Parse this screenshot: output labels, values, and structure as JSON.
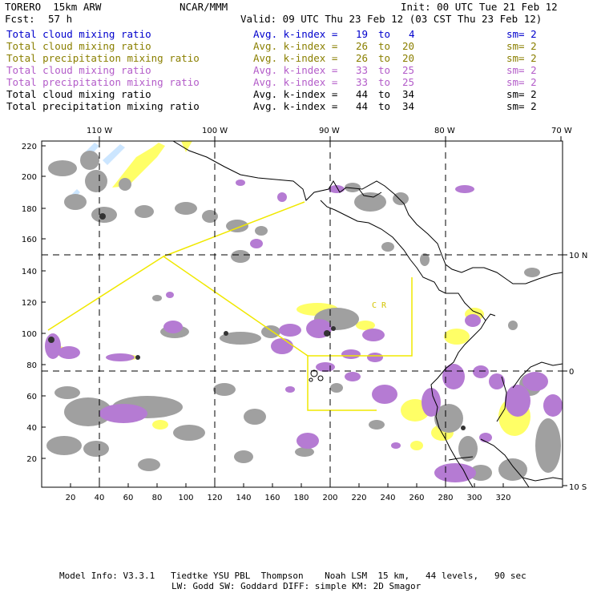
{
  "header": {
    "model": "TORERO  15km ARW",
    "center": "NCAR/MMM",
    "init": "Init: 00 UTC Tue 21 Feb 12",
    "fcst_label": "Fcst:",
    "fcst_value": "57 h",
    "valid": "Valid: 09 UTC Thu 23 Feb 12 (03 CST Thu 23 Feb 12)"
  },
  "legend": [
    {
      "field": "Total cloud mixing ratio",
      "avg": "Avg. k-index =",
      "from": "19",
      "to_word": "to",
      "to": "4",
      "sm": "sm= 2",
      "color": "#0000cc"
    },
    {
      "field": "Total cloud mixing ratio",
      "avg": "Avg. k-index =",
      "from": "26",
      "to_word": "to",
      "to": "20",
      "sm": "sm= 2",
      "color": "#8a7f00"
    },
    {
      "field": "Total precipitation mixing ratio",
      "avg": "Avg. k-index =",
      "from": "26",
      "to_word": "to",
      "to": "20",
      "sm": "sm= 2",
      "color": "#8a7f00"
    },
    {
      "field": "Total cloud mixing ratio",
      "avg": "Avg. k-index =",
      "from": "33",
      "to_word": "to",
      "to": "25",
      "sm": "sm= 2",
      "color": "#b35cc9"
    },
    {
      "field": "Total precipitation mixing ratio",
      "avg": "Avg. k-index =",
      "from": "33",
      "to_word": "to",
      "to": "25",
      "sm": "sm= 2",
      "color": "#b35cc9"
    },
    {
      "field": "Total cloud mixing ratio",
      "avg": "Avg. k-index =",
      "from": "44",
      "to_word": "to",
      "to": "34",
      "sm": "sm= 2",
      "color": "#000000"
    },
    {
      "field": "Total precipitation mixing ratio",
      "avg": "Avg. k-index =",
      "from": "44",
      "to_word": "to",
      "to": "34",
      "sm": "sm= 2",
      "color": "#000000"
    }
  ],
  "map": {
    "lon_labels": [
      "110 W",
      "100 W",
      "90 W",
      "80 W",
      "70 W"
    ],
    "lat_labels": [
      "10 N",
      "0",
      "10 S"
    ],
    "x_ticks": [
      "20",
      "40",
      "60",
      "80",
      "100",
      "120",
      "140",
      "160",
      "180",
      "200",
      "220",
      "240",
      "260",
      "280",
      "300",
      "320"
    ],
    "y_ticks": [
      "220",
      "200",
      "180",
      "160",
      "140",
      "120",
      "100",
      "80",
      "60",
      "40",
      "20"
    ],
    "region_labels": [
      "C R"
    ],
    "colors": {
      "gray": "#a0a0a0",
      "purple": "#b57bd3",
      "yellow": "#ffff66",
      "lightblue": "#cce6ff",
      "dark": "#333333",
      "box": "#f0e800"
    }
  },
  "footer": {
    "line1": "Model Info: V3.3.1   Tiedtke YSU PBL  Thompson    Noah LSM  15 km,   44 levels,   90 sec",
    "line2": "LW: Godd SW: Goddard DIFF: simple KM: 2D Smagor"
  }
}
